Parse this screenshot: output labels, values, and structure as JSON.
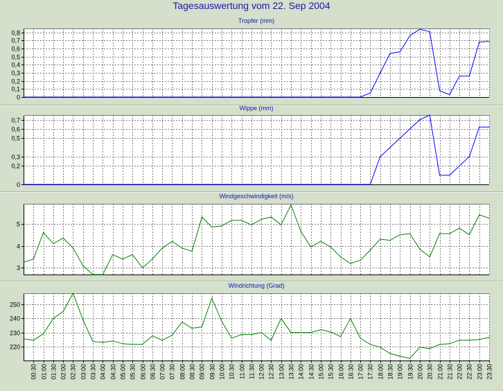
{
  "title": "Tagesauswertung vom 22. Sep 2004",
  "colors": {
    "background": "#d4dfcc",
    "plot": "#ffffff",
    "grid": "#7a7a7a",
    "title": "#1a1aa8",
    "blue_series": "#0000ff",
    "green_series": "#008000"
  },
  "x_labels": [
    "00:30",
    "01:00",
    "01:30",
    "02:00",
    "02:30",
    "03:00",
    "03:30",
    "04:00",
    "04:30",
    "05:00",
    "05:30",
    "06:00",
    "06:30",
    "07:00",
    "07:30",
    "08:00",
    "08:30",
    "09:00",
    "09:30",
    "10:00",
    "10:30",
    "11:00",
    "11:30",
    "12:00",
    "12:30",
    "13:00",
    "13:30",
    "14:00",
    "14:30",
    "15:00",
    "15:30",
    "16:00",
    "16:30",
    "17:00",
    "17:30",
    "18:00",
    "18:30",
    "19:00",
    "19:30",
    "20:00",
    "20:30",
    "21:00",
    "21:30",
    "22:00",
    "22:30",
    "23:00",
    "23:30"
  ],
  "chart_data": [
    {
      "type": "line",
      "title": "Tropfer (mm)",
      "grid": true,
      "ylim": [
        0,
        0.85
      ],
      "yticks": [
        {
          "v": 0,
          "t": "0"
        },
        {
          "v": 0.1,
          "t": "0,1"
        },
        {
          "v": 0.2,
          "t": "0,2"
        },
        {
          "v": 0.3,
          "t": "0,3"
        },
        {
          "v": 0.4,
          "t": "0,4"
        },
        {
          "v": 0.5,
          "t": "0,5"
        },
        {
          "v": 0.6,
          "t": "0,6"
        },
        {
          "v": 0.7,
          "t": "0,7"
        },
        {
          "v": 0.8,
          "t": "0,8"
        }
      ],
      "color": "#0000ff",
      "values": [
        0,
        0,
        0,
        0,
        0,
        0,
        0,
        0,
        0,
        0,
        0,
        0,
        0,
        0,
        0,
        0,
        0,
        0,
        0,
        0,
        0,
        0,
        0,
        0,
        0,
        0,
        0,
        0,
        0,
        0,
        0,
        0,
        0,
        0,
        0,
        0.05,
        0.3,
        0.54,
        0.56,
        0.76,
        0.84,
        0.81,
        0.08,
        0.03,
        0.26,
        0.26,
        0.68,
        0.69
      ]
    },
    {
      "type": "line",
      "title": "Wippe (mm)",
      "grid": true,
      "ylim": [
        0,
        0.75
      ],
      "yticks": [
        {
          "v": 0,
          "t": "0"
        },
        {
          "v": 0.2,
          "t": "0,2"
        },
        {
          "v": 0.3,
          "t": "0,3"
        },
        {
          "v": 0.5,
          "t": "0,5"
        },
        {
          "v": 0.6,
          "t": "0,6"
        },
        {
          "v": 0.7,
          "t": "0,7"
        }
      ],
      "color": "#0000ff",
      "values": [
        0,
        0,
        0,
        0,
        0,
        0,
        0,
        0,
        0,
        0,
        0,
        0,
        0,
        0,
        0,
        0,
        0,
        0,
        0,
        0,
        0,
        0,
        0,
        0,
        0,
        0,
        0,
        0,
        0,
        0,
        0,
        0,
        0,
        0,
        0,
        0,
        0.3,
        0.4,
        0.5,
        0.6,
        0.7,
        0.75,
        0.1,
        0.1,
        0.2,
        0.3,
        0.62,
        0.62
      ]
    },
    {
      "type": "line",
      "title": "Windgeschwindigkeit (m/s)",
      "grid": true,
      "ylim": [
        2.7,
        5.9
      ],
      "yticks": [
        {
          "v": 3,
          "t": "3"
        },
        {
          "v": 4,
          "t": "4"
        },
        {
          "v": 5,
          "t": "5"
        }
      ],
      "color": "#008000",
      "values": [
        3.25,
        3.4,
        4.6,
        4.1,
        4.35,
        3.9,
        3.1,
        2.65,
        2.65,
        3.6,
        3.4,
        3.6,
        3.0,
        3.4,
        3.9,
        4.2,
        3.9,
        3.75,
        5.3,
        4.85,
        4.9,
        5.15,
        5.15,
        4.95,
        5.2,
        5.3,
        4.95,
        5.85,
        4.65,
        3.95,
        4.2,
        3.95,
        3.5,
        3.2,
        3.35,
        3.8,
        4.3,
        4.25,
        4.5,
        4.55,
        3.85,
        3.5,
        4.55,
        4.55,
        4.8,
        4.5,
        5.4,
        5.25
      ]
    },
    {
      "type": "line",
      "title": "Windrichtung (Grad)",
      "grid": true,
      "ylim": [
        210,
        258
      ],
      "yticks": [
        {
          "v": 220,
          "t": "220"
        },
        {
          "v": 230,
          "t": "230"
        },
        {
          "v": 240,
          "t": "240"
        },
        {
          "v": 250,
          "t": "250"
        }
      ],
      "color": "#008000",
      "values": [
        225.5,
        224.5,
        229,
        240,
        245,
        258,
        239,
        223.5,
        223,
        224,
        222,
        221.5,
        221.5,
        227.5,
        224.5,
        228,
        237.5,
        233,
        234,
        254.5,
        238,
        226,
        228.5,
        228.5,
        230,
        224.5,
        240,
        230,
        230,
        230,
        232,
        230.5,
        227,
        240,
        226,
        221.5,
        219.5,
        215,
        213,
        211.5,
        219.5,
        218.5,
        221.5,
        222,
        224.5,
        224.5,
        225,
        226.5
      ]
    }
  ]
}
